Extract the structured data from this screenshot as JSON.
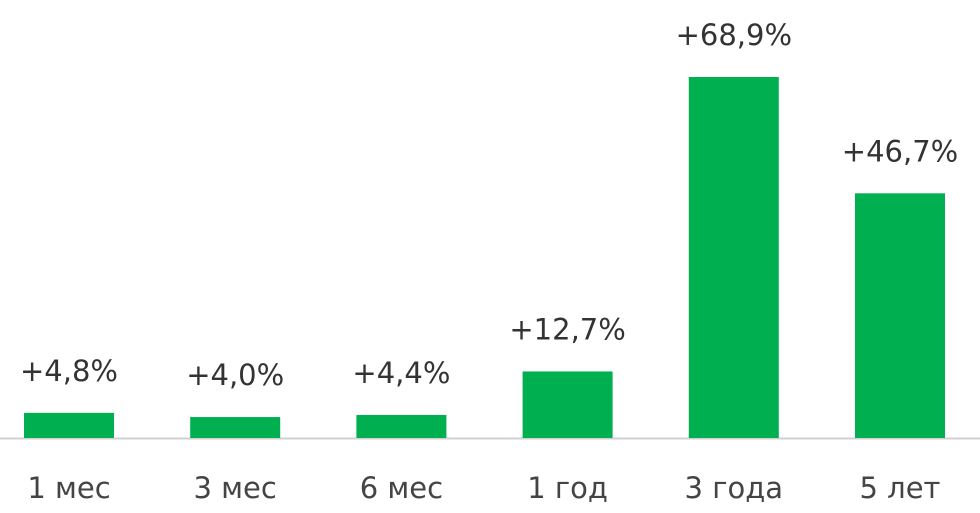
{
  "chart_data": {
    "type": "bar",
    "categories": [
      "1 мес",
      "3 мес",
      "6 мес",
      "1 год",
      "3 года",
      "5 лет"
    ],
    "values": [
      4.8,
      4.0,
      4.4,
      12.7,
      68.9,
      46.7
    ],
    "value_labels": [
      "+4,8%",
      "+4,0%",
      "+4,4%",
      "+12,7%",
      "+68,9%",
      "+46,7%"
    ],
    "color": "#00b050"
  }
}
